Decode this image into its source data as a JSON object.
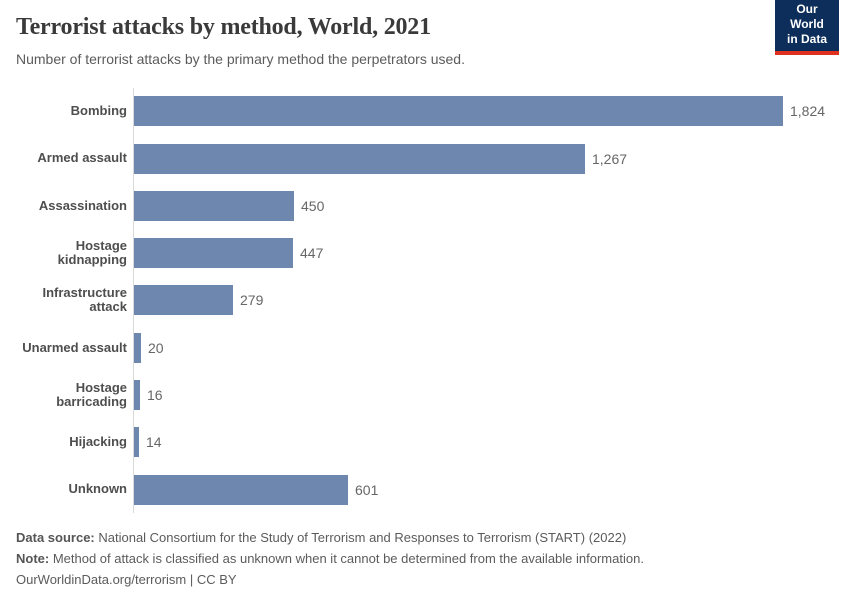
{
  "header": {
    "title": "Terrorist attacks by method, World, 2021",
    "subtitle": "Number of terrorist attacks by the primary method the perpetrators used.",
    "logo": {
      "line1": "Our World",
      "line2": "in Data",
      "bg_color": "#0d2e5a",
      "accent_color": "#e0301e"
    }
  },
  "chart_data": {
    "type": "bar",
    "orientation": "horizontal",
    "title": "Terrorist attacks by method, World, 2021",
    "subtitle": "Number of terrorist attacks by the primary method the perpetrators used.",
    "xlabel": "",
    "ylabel": "",
    "xlim": [
      0,
      1824
    ],
    "grid": false,
    "legend": false,
    "bar_color": "#6d87ae",
    "axis_line_color": "#d9d9d9",
    "categories": [
      "Bombing",
      "Armed assault",
      "Assassination",
      "Hostage kidnapping",
      "Infrastructure attack",
      "Unarmed assault",
      "Hostage barricading",
      "Hijacking",
      "Unknown"
    ],
    "values": [
      1824,
      1267,
      450,
      447,
      279,
      20,
      16,
      14,
      601
    ],
    "value_labels": [
      "1,824",
      "1,267",
      "450",
      "447",
      "279",
      "20",
      "16",
      "14",
      "601"
    ]
  },
  "footer": {
    "source_label": "Data source:",
    "source_text": " National Consortium for the Study of Terrorism and Responses to Terrorism (START) (2022)",
    "note_label": "Note:",
    "note_text": " Method of attack is classified as unknown when it cannot be determined from the available information.",
    "citation": "OurWorldinData.org/terrorism | CC BY"
  }
}
